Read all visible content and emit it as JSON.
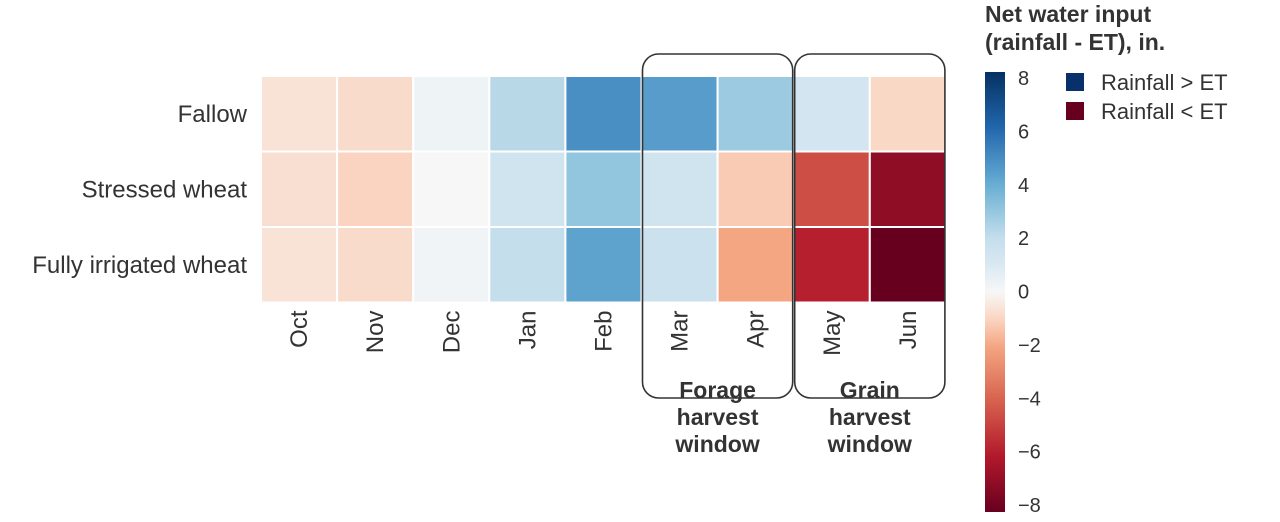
{
  "chart_data": {
    "type": "heatmap",
    "rows": [
      "Fallow",
      "Stressed wheat",
      "Fully irrigated wheat"
    ],
    "columns": [
      "Oct",
      "Nov",
      "Dec",
      "Jan",
      "Feb",
      "Mar",
      "Apr",
      "May",
      "Jun"
    ],
    "values": [
      [
        -0.6,
        -0.8,
        0.3,
        2.2,
        4.8,
        4.4,
        2.8,
        1.3,
        -0.9
      ],
      [
        -0.7,
        -1.0,
        0.0,
        1.4,
        3.0,
        1.4,
        -1.2,
        -4.5,
        -6.9
      ],
      [
        -0.6,
        -0.8,
        0.2,
        1.9,
        4.2,
        1.6,
        -2.0,
        -5.8,
        -8.0
      ]
    ],
    "colorbar": {
      "title_lines": [
        "Net water input",
        "(rainfall - ET), in."
      ],
      "min": -8,
      "max": 8,
      "ticks": [
        "8",
        "6",
        "4",
        "2",
        "0",
        "−2",
        "−4",
        "−6",
        "−8"
      ],
      "colormap": "RdBu"
    },
    "legend": [
      {
        "label": "Rainfall > ET",
        "color": "#08306b"
      },
      {
        "label": "Rainfall < ET",
        "color": "#67001f"
      }
    ],
    "annotations": [
      {
        "columns": [
          "Mar",
          "Apr"
        ],
        "lines": [
          "Forage",
          "harvest",
          "window"
        ]
      },
      {
        "columns": [
          "May",
          "Jun"
        ],
        "lines": [
          "Grain",
          "harvest",
          "window"
        ]
      }
    ]
  }
}
